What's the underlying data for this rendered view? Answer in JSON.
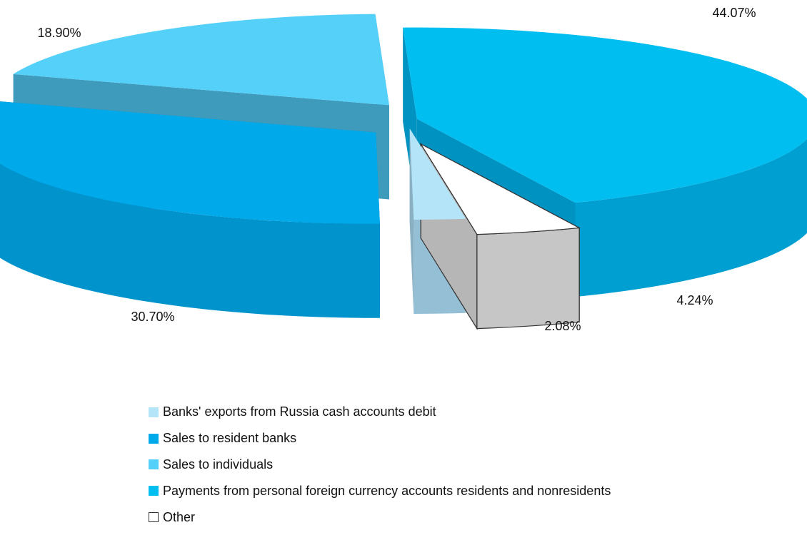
{
  "chart_data": {
    "type": "pie",
    "style": "3d-exploded",
    "slices": [
      {
        "label": "Payments from personal foreign currency accounts  residents and nonresidents",
        "value": 44.07,
        "value_label": "44.07%",
        "color": "#00bef0"
      },
      {
        "label": "Other",
        "value": 4.24,
        "value_label": "4.24%",
        "color": "#ffffff"
      },
      {
        "label": "Banks' exports from Russia cash accounts debit",
        "value": 2.08,
        "value_label": "2.08%",
        "color": "#b4e4f7"
      },
      {
        "label": "Sales to resident banks",
        "value": 30.7,
        "value_label": "30.70%",
        "color": "#00aaea"
      },
      {
        "label": "Sales to individuals",
        "value": 18.9,
        "value_label": "18.90%",
        "color": "#55d0f9"
      }
    ],
    "legend": [
      {
        "label": "Banks' exports from Russia cash accounts debit",
        "color": "#b4e4f7"
      },
      {
        "label": "Sales to resident banks",
        "color": "#00aaea"
      },
      {
        "label": "Sales to individuals",
        "color": "#55d0f9"
      },
      {
        "label": "Payments from personal foreign currency accounts  residents and nonresidents",
        "color": "#00bef0"
      },
      {
        "label": "Other",
        "color": "#ffffff"
      }
    ],
    "legend_position": "bottom"
  }
}
